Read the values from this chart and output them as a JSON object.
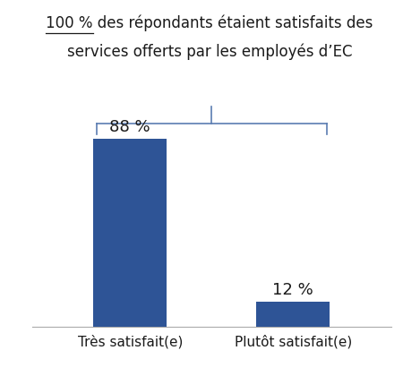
{
  "categories": [
    "Très satisfait(e)",
    "Plutôt satisfait(e)"
  ],
  "values": [
    88,
    12
  ],
  "bar_color": "#2E5496",
  "value_labels": [
    "88 %",
    "12 %"
  ],
  "title_line1": "100 % des répondants étaient satisfaits des",
  "title_line2": "services offerts par les employés d’EC",
  "title_highlight": "100 %",
  "ylim": [
    0,
    100
  ],
  "bar_width": 0.45,
  "background_color": "#ffffff",
  "text_color": "#1a1a1a",
  "bracket_color": "#5B7DB1",
  "value_fontsize": 13,
  "label_fontsize": 11,
  "title_fontsize": 12
}
